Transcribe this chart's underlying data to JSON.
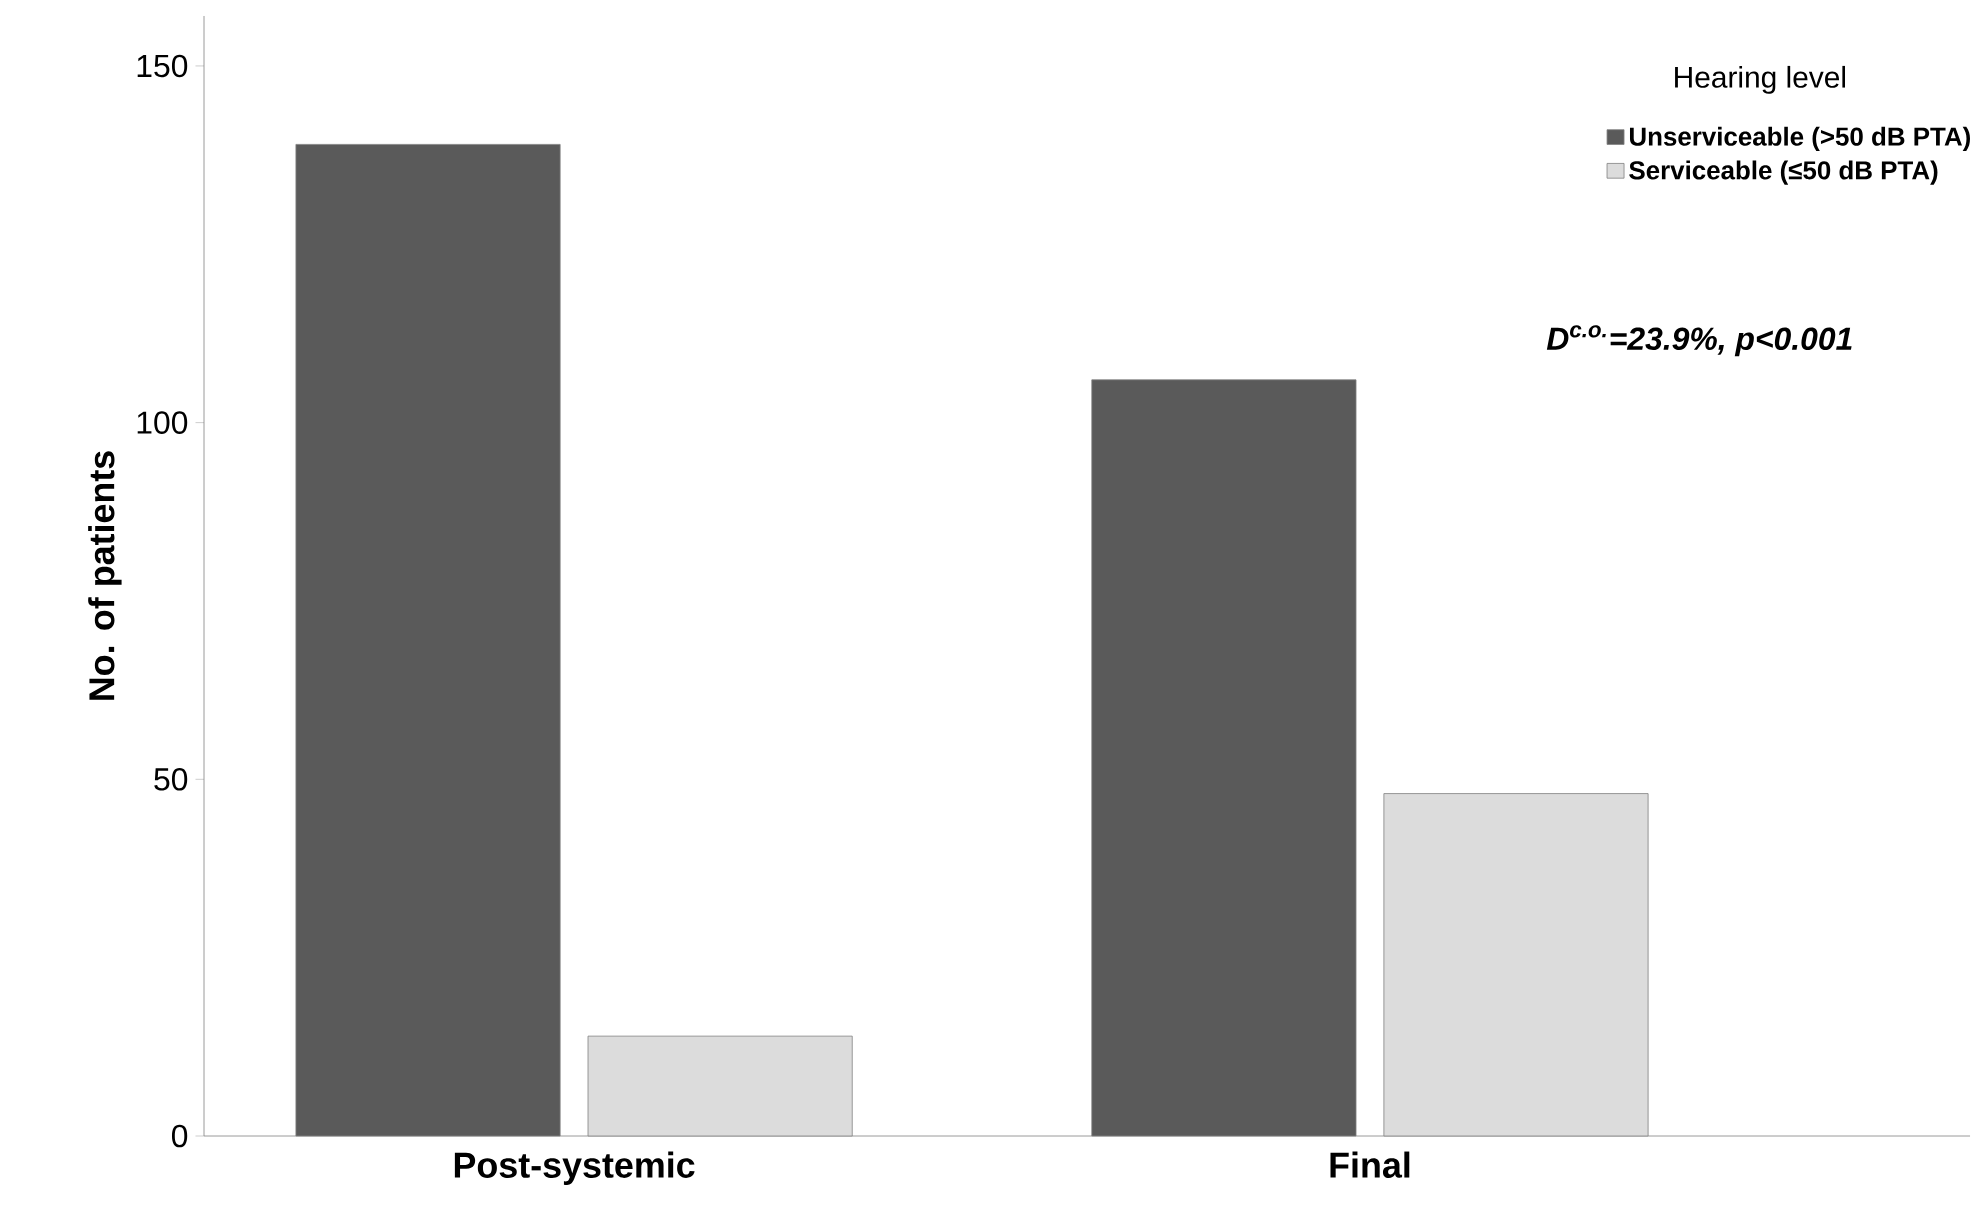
{
  "chart_data": {
    "type": "bar",
    "ylabel": "No. of patients",
    "legend_title": "Hearing level",
    "categories": [
      "Post-systemic",
      "Final"
    ],
    "series": [
      {
        "name": "Unserviceable (>50 dB PTA)",
        "color": "#5a5a5a",
        "values": [
          139,
          106
        ]
      },
      {
        "name": "Serviceable (≤50 dB PTA)",
        "color": "#dcdcdc",
        "values": [
          14,
          48
        ]
      }
    ],
    "ylim": [
      0,
      157
    ],
    "yticks": [
      0,
      50,
      100,
      150
    ],
    "grid": false,
    "legend": "top right",
    "annotations": [
      "D$^{c.o.}$=23.9%, p<0.001"
    ]
  }
}
